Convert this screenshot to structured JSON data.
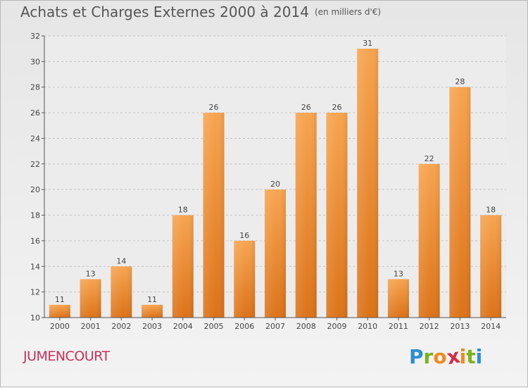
{
  "title": "Achats et Charges Externes 2000 à 2014",
  "unit": "(en milliers d'€)",
  "commune": "JUMENCOURT",
  "logo": {
    "letters": [
      "P",
      "r",
      "o",
      "x",
      "i",
      "t",
      "i"
    ],
    "colors": [
      "#2a8fd6",
      "#7ab317",
      "#f08a1c",
      "#d32c45",
      "#f08a1c",
      "#7ab317",
      "#2a8fd6"
    ]
  },
  "colors": {
    "bar": "#f0862a",
    "bar_light": "#f7a95a",
    "bar_dark": "#d96f15"
  },
  "chart_data": {
    "type": "bar",
    "categories": [
      "2000",
      "2001",
      "2002",
      "2003",
      "2004",
      "2005",
      "2006",
      "2007",
      "2008",
      "2009",
      "2010",
      "2011",
      "2012",
      "2013",
      "2014"
    ],
    "values": [
      11,
      13,
      14,
      11,
      18,
      26,
      16,
      20,
      26,
      26,
      31,
      13,
      22,
      28,
      18
    ],
    "ylim": [
      10,
      32
    ],
    "yticks": [
      10,
      12,
      14,
      16,
      18,
      20,
      22,
      24,
      26,
      28,
      30,
      32
    ],
    "grid": true,
    "xlabel": "",
    "ylabel": ""
  }
}
